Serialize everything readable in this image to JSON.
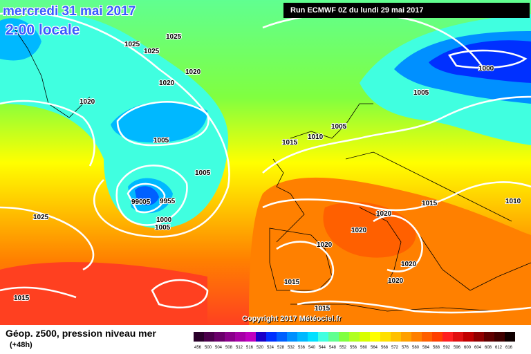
{
  "header": {
    "date": "mercredi 31 mai 2017",
    "time": "2:00 locale",
    "run": "Run ECMWF 0Z du lundi 29 mai 2017"
  },
  "copyright": "Copyright 2017 Météociel.fr",
  "legend": {
    "title": "Géop. z500, pression niveau mer",
    "subtitle": "(+48h)",
    "values": [
      "456",
      "500",
      "504",
      "508",
      "512",
      "516",
      "520",
      "524",
      "528",
      "532",
      "536",
      "540",
      "544",
      "548",
      "552",
      "556",
      "560",
      "564",
      "568",
      "572",
      "576",
      "580",
      "584",
      "588",
      "592",
      "596",
      "600",
      "604",
      "608",
      "612",
      "616"
    ],
    "colors": [
      "#2a002a",
      "#4b004b",
      "#6a006a",
      "#8a008a",
      "#a600a6",
      "#c000c0",
      "#1a00c8",
      "#0030ff",
      "#0060ff",
      "#0090ff",
      "#00b8ff",
      "#00e0ff",
      "#40ffe0",
      "#60ff90",
      "#80ff40",
      "#b0ff20",
      "#d8ff00",
      "#ffff00",
      "#ffe000",
      "#ffc000",
      "#ffa000",
      "#ff8000",
      "#ff6000",
      "#ff4000",
      "#ff2020",
      "#e01010",
      "#c00000",
      "#900000",
      "#600000",
      "#400000",
      "#100000"
    ]
  },
  "isobars": [
    {
      "text": "1025"
    },
    {
      "text": "1025"
    },
    {
      "text": "1025"
    },
    {
      "text": "1020"
    },
    {
      "text": "1020"
    },
    {
      "text": "1020"
    },
    {
      "text": "1005"
    },
    {
      "text": "1005"
    },
    {
      "text": "1005"
    },
    {
      "text": "1005"
    },
    {
      "text": "990"
    },
    {
      "text": "995"
    },
    {
      "text": "1000"
    },
    {
      "text": "1005"
    },
    {
      "text": "1025"
    },
    {
      "text": "1015"
    },
    {
      "text": "1010"
    },
    {
      "text": "1005"
    },
    {
      "text": "1000"
    },
    {
      "text": "1005"
    },
    {
      "text": "1020"
    },
    {
      "text": "1020"
    },
    {
      "text": "1015"
    },
    {
      "text": "1010"
    },
    {
      "text": "1020"
    },
    {
      "text": "1020"
    },
    {
      "text": "1020"
    },
    {
      "text": "1015"
    },
    {
      "text": "1015"
    },
    {
      "text": "1015"
    }
  ]
}
